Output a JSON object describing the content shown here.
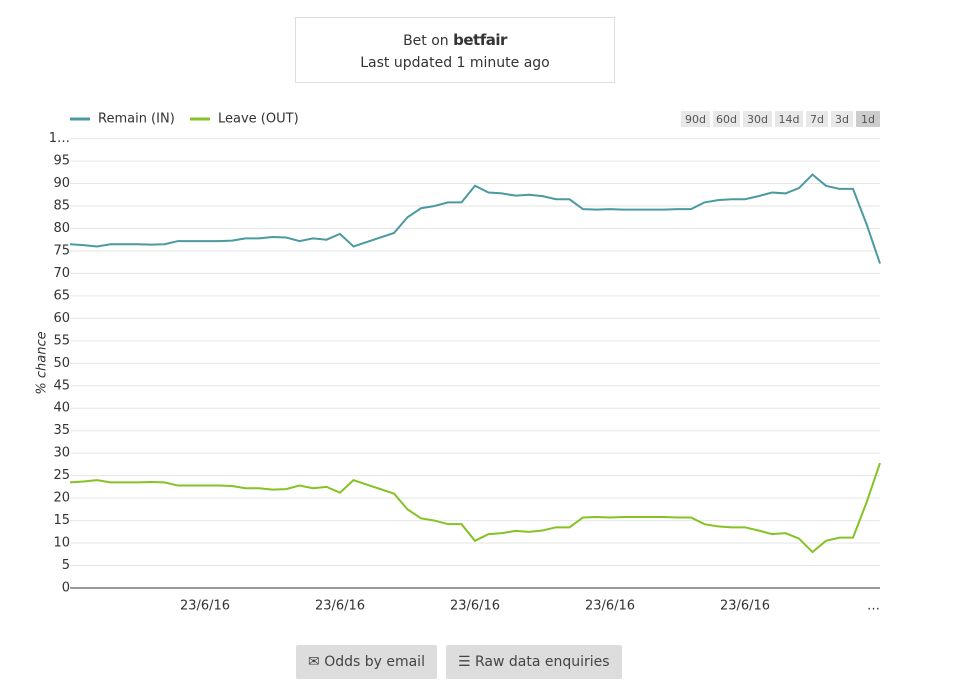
{
  "header": {
    "bet_on": "Bet on",
    "brand": "betfair",
    "updated": "Last updated 1 minute ago"
  },
  "ranges": [
    "90d",
    "60d",
    "30d",
    "14d",
    "7d",
    "3d",
    "1d"
  ],
  "buttons": [
    "Odds by email",
    "Raw data enquiries"
  ],
  "chart_data": {
    "type": "line",
    "y_label": "% chance",
    "categories": [
      "",
      null,
      null,
      null,
      null,
      null,
      null,
      null,
      null,
      null,
      "23/6/16",
      null,
      null,
      null,
      null,
      null,
      null,
      null,
      null,
      null,
      "23/6/16",
      null,
      null,
      null,
      null,
      null,
      null,
      null,
      null,
      null,
      "23/6/16",
      null,
      null,
      null,
      null,
      null,
      null,
      null,
      null,
      null,
      "23/6/16",
      null,
      null,
      null,
      null,
      null,
      null,
      null,
      null,
      null,
      "23/6/16",
      null,
      null,
      null,
      null,
      null,
      null,
      null,
      null,
      null,
      "…"
    ],
    "ylim": [
      0,
      100
    ],
    "yticks": [
      0,
      5,
      10,
      15,
      20,
      25,
      30,
      35,
      40,
      45,
      50,
      55,
      60,
      65,
      70,
      75,
      80,
      85,
      90,
      95,
      {
        "value": 100,
        "label": "1…"
      }
    ],
    "grid": true,
    "series": [
      {
        "name": "Remain (IN)",
        "color": "#4a9aa0",
        "values": [
          76.5,
          76.3,
          76,
          76.5,
          76.5,
          76.5,
          76.4,
          76.5,
          77.2,
          77.2,
          77.2,
          77.2,
          77.3,
          77.8,
          77.8,
          78.1,
          78,
          77.2,
          77.8,
          77.5,
          78.8,
          76,
          77,
          78,
          79,
          82.5,
          84.5,
          85,
          85.8,
          85.8,
          89.5,
          88,
          87.8,
          87.3,
          87.5,
          87.2,
          86.5,
          86.5,
          84.3,
          84.2,
          84.3,
          84.2,
          84.2,
          84.2,
          84.2,
          84.3,
          84.3,
          85.8,
          86.3,
          86.5,
          86.5,
          87.2,
          88,
          87.8,
          89,
          92,
          89.5,
          88.8,
          88.8,
          81,
          72.2
        ]
      },
      {
        "name": "Leave (OUT)",
        "color": "#84c225",
        "values": [
          23.5,
          23.7,
          24,
          23.5,
          23.5,
          23.5,
          23.6,
          23.5,
          22.8,
          22.8,
          22.8,
          22.8,
          22.7,
          22.2,
          22.2,
          21.9,
          22,
          22.8,
          22.2,
          22.5,
          21.2,
          24,
          23,
          22,
          21,
          17.5,
          15.5,
          15,
          14.2,
          14.2,
          10.5,
          12,
          12.2,
          12.7,
          12.5,
          12.8,
          13.5,
          13.5,
          15.7,
          15.8,
          15.7,
          15.8,
          15.8,
          15.8,
          15.8,
          15.7,
          15.7,
          14.2,
          13.7,
          13.5,
          13.5,
          12.8,
          12,
          12.2,
          11,
          8,
          10.5,
          11.2,
          11.2,
          19,
          27.8
        ]
      }
    ]
  }
}
